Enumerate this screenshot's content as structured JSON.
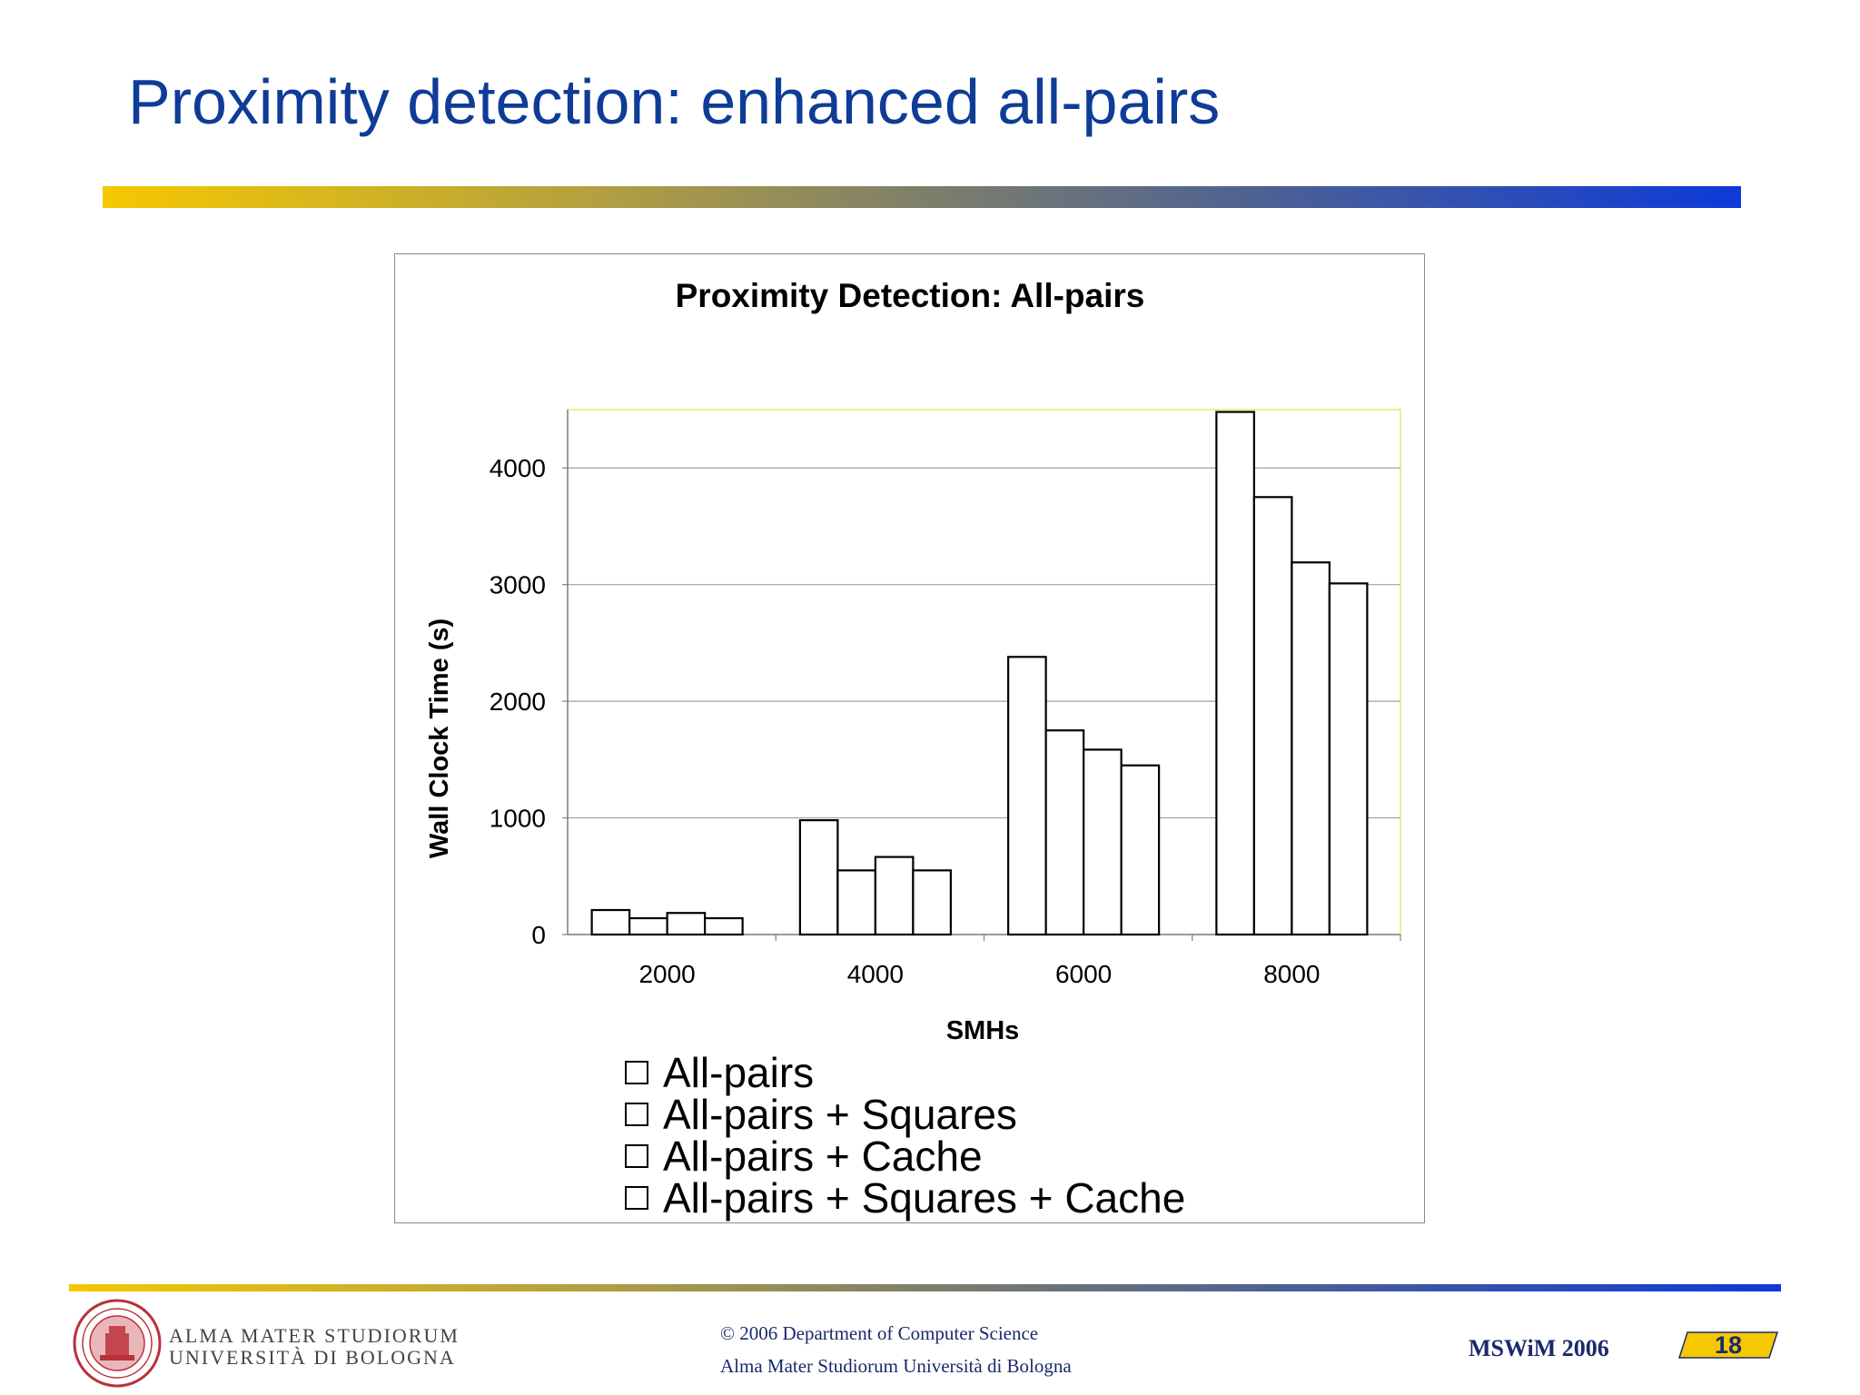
{
  "slide": {
    "title": "Proximity detection: enhanced all-pairs"
  },
  "chart_data": {
    "type": "bar",
    "title": "Proximity Detection: All-pairs",
    "xlabel": "SMHs",
    "ylabel": "Wall Clock Time (s)",
    "categories": [
      "2000",
      "4000",
      "6000",
      "8000"
    ],
    "ylim": [
      0,
      4500
    ],
    "yticks": [
      "0",
      "1000",
      "2000",
      "3000",
      "4000"
    ],
    "grid": true,
    "legend_position": "bottom",
    "series": [
      {
        "name": "All-pairs",
        "values": [
          210,
          980,
          2380,
          4480
        ]
      },
      {
        "name": "All-pairs + Squares",
        "values": [
          140,
          550,
          1750,
          3750
        ]
      },
      {
        "name": "All-pairs + Cache",
        "values": [
          185,
          665,
          1585,
          3190
        ]
      },
      {
        "name": "All-pairs + Squares + Cache",
        "values": [
          140,
          550,
          1450,
          3010
        ]
      }
    ]
  },
  "footer": {
    "univ_line1": "ALMA MATER STUDIORUM",
    "univ_line2": "UNIVERSITÀ DI BOLOGNA",
    "copyright": "© 2006 Department of Computer Science",
    "institution": "Alma Mater Studiorum Università di Bologna",
    "conference": "MSWiM 2006",
    "page_number": "18"
  },
  "colors": {
    "title": "#0e3c97",
    "footer_text": "#1a2a6c",
    "badge_fill": "#f6c800",
    "bar_fill": "#ffffff",
    "bar_stroke": "#000000",
    "gridline": "#a0a0a0",
    "plot_border": "#e8e870"
  }
}
